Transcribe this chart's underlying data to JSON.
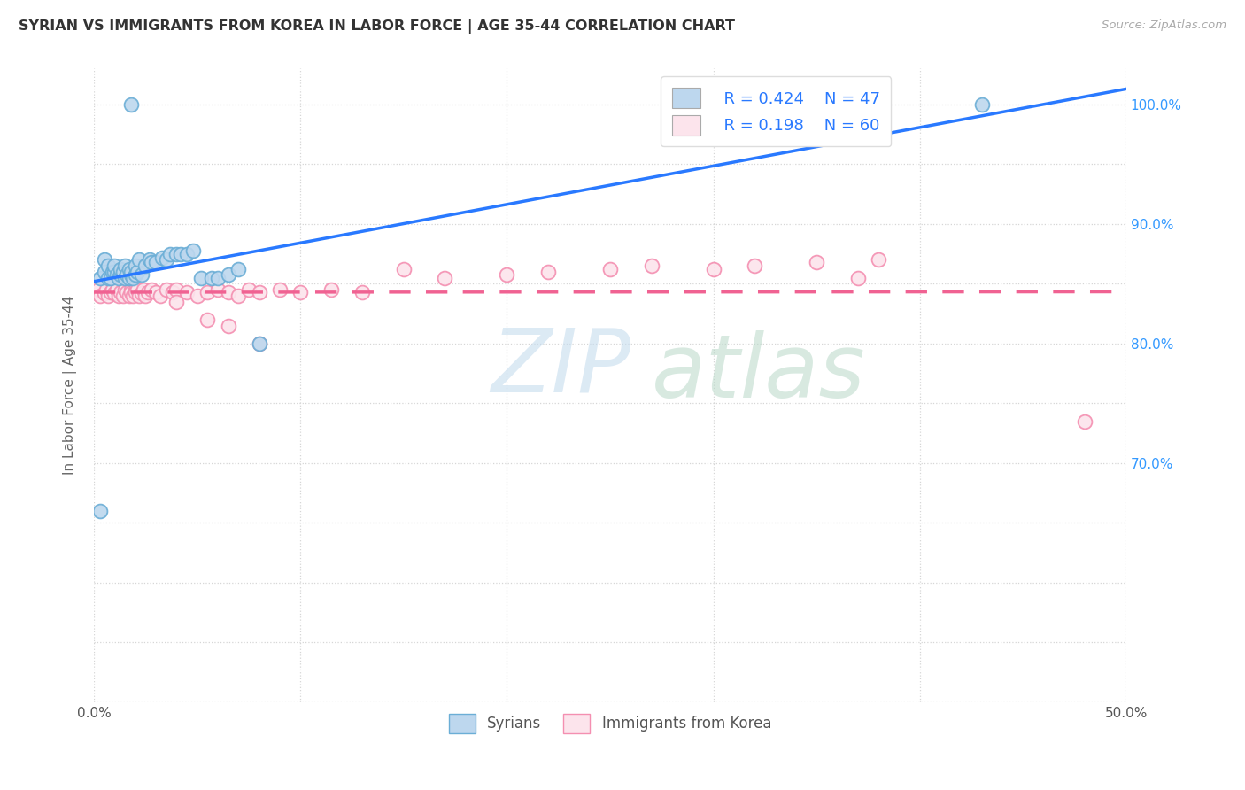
{
  "title": "SYRIAN VS IMMIGRANTS FROM KOREA IN LABOR FORCE | AGE 35-44 CORRELATION CHART",
  "source": "Source: ZipAtlas.com",
  "ylabel": "In Labor Force | Age 35-44",
  "xlim": [
    0.0,
    0.5
  ],
  "ylim": [
    0.5,
    1.03
  ],
  "xticks": [
    0.0,
    0.1,
    0.2,
    0.3,
    0.4,
    0.5
  ],
  "xticklabels": [
    "0.0%",
    "",
    "",
    "",
    "",
    "50.0%"
  ],
  "yticks_right_vals": [
    0.7,
    0.8,
    0.9,
    1.0
  ],
  "yticks_right_labels": [
    "70.0%",
    "80.0%",
    "90.0%",
    "100.0%"
  ],
  "legend_r1": "R = 0.424",
  "legend_n1": "N = 47",
  "legend_r2": "R = 0.198",
  "legend_n2": "N = 60",
  "color_syrians_edge": "#6baed6",
  "color_syrians_face": "#bdd7ee",
  "color_korea_edge": "#f48fb1",
  "color_korea_face": "#fce4ec",
  "color_blue_line": "#2979ff",
  "color_pink_line": "#f06292",
  "color_blue_text": "#2979ff",
  "watermark_zip_color": "#c8dff0",
  "watermark_atlas_color": "#c8e0d0",
  "syr_x": [
    0.003,
    0.005,
    0.005,
    0.007,
    0.007,
    0.008,
    0.009,
    0.01,
    0.01,
    0.011,
    0.012,
    0.013,
    0.013,
    0.014,
    0.015,
    0.015,
    0.016,
    0.017,
    0.017,
    0.018,
    0.018,
    0.019,
    0.02,
    0.02,
    0.021,
    0.022,
    0.023,
    0.025,
    0.027,
    0.028,
    0.03,
    0.033,
    0.035,
    0.037,
    0.04,
    0.042,
    0.045,
    0.048,
    0.052,
    0.057,
    0.06,
    0.065,
    0.07,
    0.08,
    0.018,
    0.43,
    0.003
  ],
  "syr_y": [
    0.855,
    0.87,
    0.86,
    0.855,
    0.865,
    0.855,
    0.86,
    0.86,
    0.865,
    0.858,
    0.855,
    0.858,
    0.862,
    0.86,
    0.855,
    0.865,
    0.858,
    0.855,
    0.862,
    0.858,
    0.86,
    0.855,
    0.858,
    0.865,
    0.86,
    0.87,
    0.858,
    0.865,
    0.87,
    0.868,
    0.868,
    0.872,
    0.87,
    0.875,
    0.875,
    0.875,
    0.875,
    0.878,
    0.855,
    0.855,
    0.855,
    0.858,
    0.862,
    0.8,
    1.0,
    1.0,
    0.66
  ],
  "kor_x": [
    0.002,
    0.003,
    0.005,
    0.006,
    0.007,
    0.008,
    0.009,
    0.01,
    0.011,
    0.012,
    0.013,
    0.014,
    0.015,
    0.016,
    0.017,
    0.018,
    0.018,
    0.019,
    0.02,
    0.02,
    0.021,
    0.022,
    0.023,
    0.024,
    0.025,
    0.026,
    0.028,
    0.03,
    0.032,
    0.035,
    0.038,
    0.04,
    0.045,
    0.05,
    0.055,
    0.06,
    0.065,
    0.07,
    0.075,
    0.08,
    0.09,
    0.1,
    0.115,
    0.13,
    0.15,
    0.17,
    0.2,
    0.22,
    0.25,
    0.27,
    0.3,
    0.32,
    0.35,
    0.38,
    0.04,
    0.055,
    0.065,
    0.08,
    0.37,
    0.48
  ],
  "kor_y": [
    0.845,
    0.84,
    0.842,
    0.845,
    0.84,
    0.843,
    0.845,
    0.842,
    0.845,
    0.84,
    0.843,
    0.84,
    0.845,
    0.843,
    0.84,
    0.845,
    0.843,
    0.84,
    0.845,
    0.843,
    0.845,
    0.84,
    0.842,
    0.845,
    0.84,
    0.843,
    0.845,
    0.843,
    0.84,
    0.845,
    0.843,
    0.845,
    0.843,
    0.84,
    0.843,
    0.845,
    0.843,
    0.84,
    0.845,
    0.843,
    0.845,
    0.843,
    0.845,
    0.843,
    0.862,
    0.855,
    0.858,
    0.86,
    0.862,
    0.865,
    0.862,
    0.865,
    0.868,
    0.87,
    0.835,
    0.82,
    0.815,
    0.8,
    0.855,
    0.735
  ]
}
